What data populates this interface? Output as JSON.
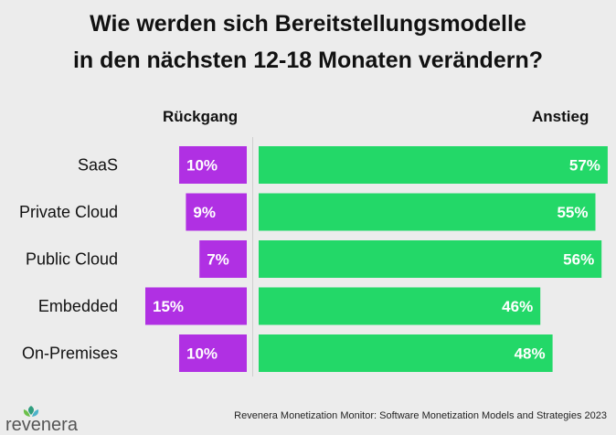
{
  "title": {
    "line1": "Wie werden sich Bereitstellungsmodelle",
    "line2": "in den nächsten 12-18 Monaten verändern?"
  },
  "legend": {
    "decrease": "Rückgang",
    "increase": "Anstieg"
  },
  "colors": {
    "decrease": "#b030e3",
    "increase": "#23d868",
    "background": "#ececec"
  },
  "chart_data": {
    "type": "bar",
    "orientation": "horizontal-diverging",
    "categories": [
      "SaaS",
      "Private Cloud",
      "Public Cloud",
      "Embedded",
      "On-Premises"
    ],
    "series": [
      {
        "name": "Rückgang",
        "values": [
          10,
          9,
          7,
          15,
          10
        ],
        "labels": [
          "10%",
          "9%",
          "7%",
          "15%",
          "10%"
        ]
      },
      {
        "name": "Anstieg",
        "values": [
          57,
          55,
          56,
          46,
          48
        ],
        "labels": [
          "57%",
          "55%",
          "56%",
          "46%",
          "48%"
        ]
      }
    ],
    "unit": "%"
  },
  "footer": {
    "logo_text": "revenera",
    "source": "Revenera Monetization Monitor: Software Monetization Models and Strategies 2023"
  }
}
